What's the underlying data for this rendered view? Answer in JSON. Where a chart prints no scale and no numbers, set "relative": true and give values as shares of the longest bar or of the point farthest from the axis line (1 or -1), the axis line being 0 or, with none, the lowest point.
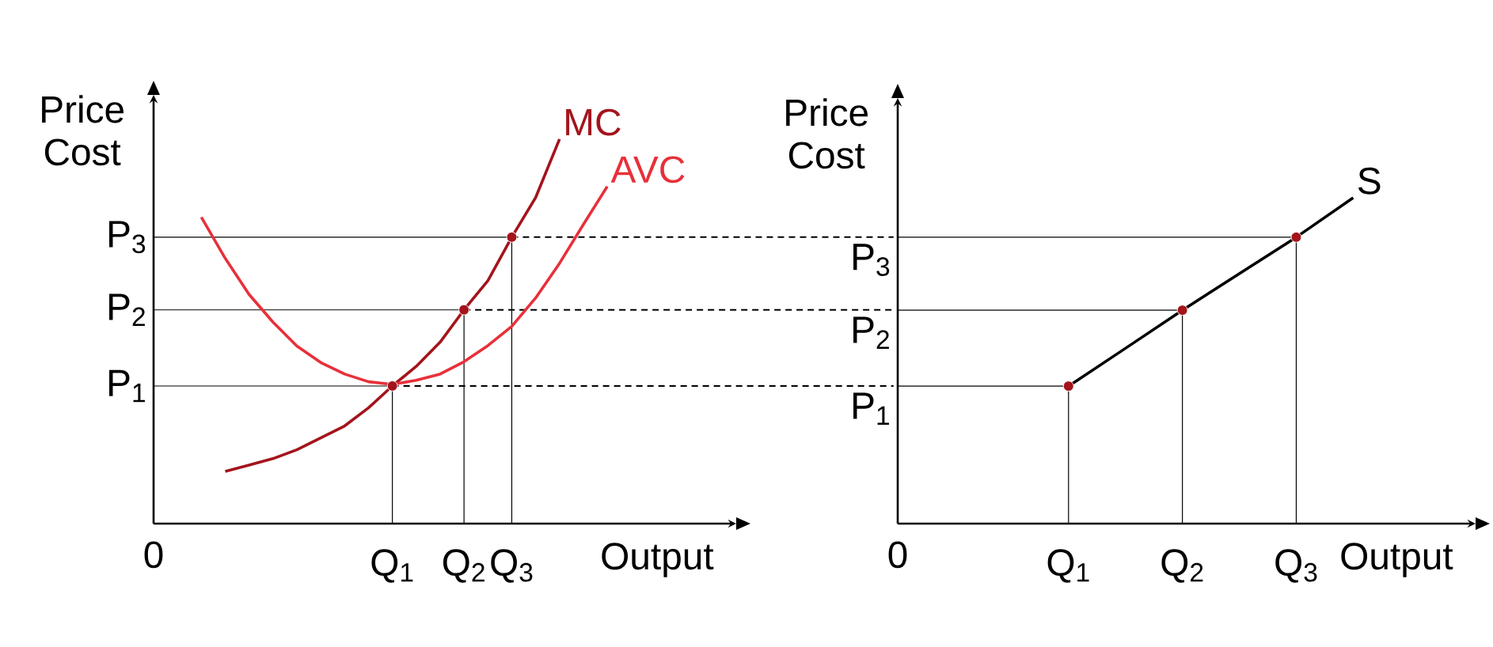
{
  "chart_data": [
    {
      "type": "line",
      "relative": true,
      "xlabel": "Output",
      "ylabel": "Price Cost",
      "annotations": [
        "0"
      ],
      "categories": [
        null,
        null,
        null,
        null,
        null,
        null,
        null,
        null,
        null,
        "Q$_{1}$",
        null,
        null,
        "Q$_{2}$",
        null,
        "Q$_{3}$",
        null,
        null,
        null,
        null
      ],
      "series": [
        {
          "name": "MC",
          "color": "#a3141c",
          "values": [
            null,
            null,
            0.136,
            0.152,
            0.169,
            0.192,
            0.223,
            0.254,
            0.301,
            0.358,
            0.409,
            0.472,
            0.556,
            0.632,
            0.745,
            0.848,
            1.0,
            null,
            null
          ]
        },
        {
          "name": "AVC",
          "color": "#e8303a",
          "values": [
            null,
            0.797,
            0.69,
            0.596,
            0.524,
            0.462,
            0.419,
            0.389,
            0.369,
            0.362,
            0.373,
            0.389,
            0.421,
            0.463,
            0.513,
            0.587,
            0.677,
            0.778,
            0.877
          ]
        },
        {
          "type": "scatter",
          "marker": "circle",
          "color": "#a3141c",
          "values": [
            null,
            null,
            null,
            null,
            null,
            null,
            null,
            null,
            null,
            0.358,
            null,
            null,
            0.556,
            null,
            0.745,
            null,
            null,
            null,
            null
          ]
        }
      ],
      "ref_lines": [
        {
          "axis": "y",
          "value": 0.358,
          "label": "P$_{1}$"
        },
        {
          "axis": "y",
          "value": 0.556,
          "label": "P$_{2}$"
        },
        {
          "axis": "y",
          "value": 0.745,
          "label": "P$_{3}$"
        }
      ]
    },
    {
      "type": "line",
      "relative": true,
      "xlabel": "Output",
      "ylabel": "Price Cost",
      "annotations": [
        "0"
      ],
      "categories": [
        null,
        null,
        "Q$_{1}$",
        null,
        "Q$_{2}$",
        null,
        "Q$_{3}$",
        null
      ],
      "series": [
        {
          "name": "S",
          "color": "#000000",
          "values": [
            null,
            null,
            0.422,
            0.538,
            0.655,
            0.767,
            0.879,
            1.0
          ]
        },
        {
          "type": "scatter",
          "marker": "circle",
          "color": "#a3141c",
          "values": [
            null,
            null,
            0.422,
            null,
            0.655,
            null,
            0.879,
            null
          ]
        }
      ],
      "ref_lines": [
        {
          "axis": "y",
          "value": 0.422,
          "label": "P$_{1}$"
        },
        {
          "axis": "y",
          "value": 0.655,
          "label": "P$_{2}$"
        },
        {
          "axis": "y",
          "value": 0.879,
          "label": "P$_{3}$"
        }
      ]
    }
  ]
}
